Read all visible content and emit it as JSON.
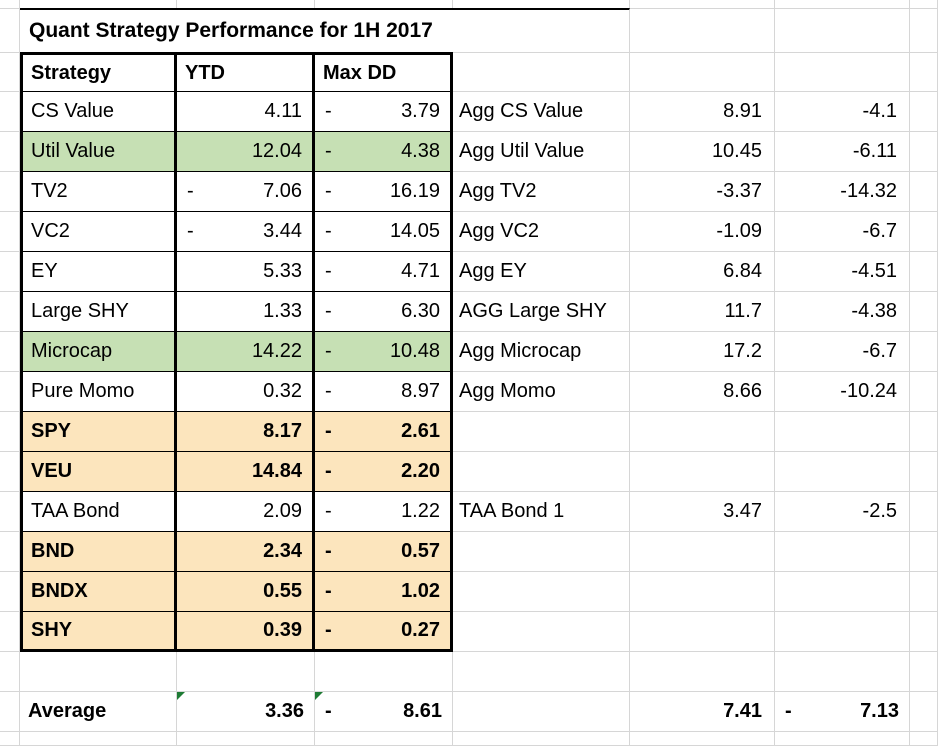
{
  "title": "Quant Strategy Performance for 1H 2017",
  "colors": {
    "green_fill": "#c6e0b4",
    "orange_fill": "#fce5bd",
    "grid_line": "#d6d6d6",
    "table_border": "#000000",
    "flag_green": "#1e7b34"
  },
  "table": {
    "headers": {
      "strategy": "Strategy",
      "ytd": "YTD",
      "max_dd": "Max DD"
    },
    "rows": [
      {
        "strategy": "CS Value",
        "ytd_minus": "",
        "ytd": "4.11",
        "dd_minus": "-",
        "dd": "3.79",
        "fill": "none",
        "bold": false,
        "agg_label": "Agg CS Value",
        "agg_ytd": "8.91",
        "agg_dd": "-4.1"
      },
      {
        "strategy": "Util Value",
        "ytd_minus": "",
        "ytd": "12.04",
        "dd_minus": "-",
        "dd": "4.38",
        "fill": "green",
        "bold": false,
        "agg_label": "Agg Util Value",
        "agg_ytd": "10.45",
        "agg_dd": "-6.11"
      },
      {
        "strategy": "TV2",
        "ytd_minus": "-",
        "ytd": "7.06",
        "dd_minus": "-",
        "dd": "16.19",
        "fill": "none",
        "bold": false,
        "agg_label": "Agg TV2",
        "agg_ytd": "-3.37",
        "agg_dd": "-14.32"
      },
      {
        "strategy": "VC2",
        "ytd_minus": "-",
        "ytd": "3.44",
        "dd_minus": "-",
        "dd": "14.05",
        "fill": "none",
        "bold": false,
        "agg_label": "Agg VC2",
        "agg_ytd": "-1.09",
        "agg_dd": "-6.7"
      },
      {
        "strategy": "EY",
        "ytd_minus": "",
        "ytd": "5.33",
        "dd_minus": "-",
        "dd": "4.71",
        "fill": "none",
        "bold": false,
        "agg_label": "Agg EY",
        "agg_ytd": "6.84",
        "agg_dd": "-4.51"
      },
      {
        "strategy": "Large SHY",
        "ytd_minus": "",
        "ytd": "1.33",
        "dd_minus": "-",
        "dd": "6.30",
        "fill": "none",
        "bold": false,
        "agg_label": "AGG Large SHY",
        "agg_ytd": "11.7",
        "agg_dd": "-4.38"
      },
      {
        "strategy": "Microcap",
        "ytd_minus": "",
        "ytd": "14.22",
        "dd_minus": "-",
        "dd": "10.48",
        "fill": "green",
        "bold": false,
        "agg_label": "Agg Microcap",
        "agg_ytd": "17.2",
        "agg_dd": "-6.7"
      },
      {
        "strategy": "Pure Momo",
        "ytd_minus": "",
        "ytd": "0.32",
        "dd_minus": "-",
        "dd": "8.97",
        "fill": "none",
        "bold": false,
        "agg_label": "Agg Momo",
        "agg_ytd": "8.66",
        "agg_dd": "-10.24"
      },
      {
        "strategy": "SPY",
        "ytd_minus": "",
        "ytd": "8.17",
        "dd_minus": "-",
        "dd": "2.61",
        "fill": "orange",
        "bold": true,
        "agg_label": "",
        "agg_ytd": "",
        "agg_dd": ""
      },
      {
        "strategy": "VEU",
        "ytd_minus": "",
        "ytd": "14.84",
        "dd_minus": "-",
        "dd": "2.20",
        "fill": "orange",
        "bold": true,
        "agg_label": "",
        "agg_ytd": "",
        "agg_dd": ""
      },
      {
        "strategy": "TAA Bond",
        "ytd_minus": "",
        "ytd": "2.09",
        "dd_minus": "-",
        "dd": "1.22",
        "fill": "none",
        "bold": false,
        "agg_label": "TAA Bond 1",
        "agg_ytd": "3.47",
        "agg_dd": "-2.5"
      },
      {
        "strategy": "BND",
        "ytd_minus": "",
        "ytd": "2.34",
        "dd_minus": "-",
        "dd": "0.57",
        "fill": "orange",
        "bold": true,
        "agg_label": "",
        "agg_ytd": "",
        "agg_dd": ""
      },
      {
        "strategy": "BNDX",
        "ytd_minus": "",
        "ytd": "0.55",
        "dd_minus": "-",
        "dd": "1.02",
        "fill": "orange",
        "bold": true,
        "agg_label": "",
        "agg_ytd": "",
        "agg_dd": ""
      },
      {
        "strategy": "SHY",
        "ytd_minus": "",
        "ytd": "0.39",
        "dd_minus": "-",
        "dd": "0.27",
        "fill": "orange",
        "bold": true,
        "agg_label": "",
        "agg_ytd": "",
        "agg_dd": ""
      }
    ]
  },
  "average": {
    "label": "Average",
    "ytd_minus": "",
    "ytd": "3.36",
    "dd_minus": "-",
    "dd": "8.61",
    "agg_ytd": "7.41",
    "agg_dd_minus": "-",
    "agg_dd": "7.13"
  }
}
